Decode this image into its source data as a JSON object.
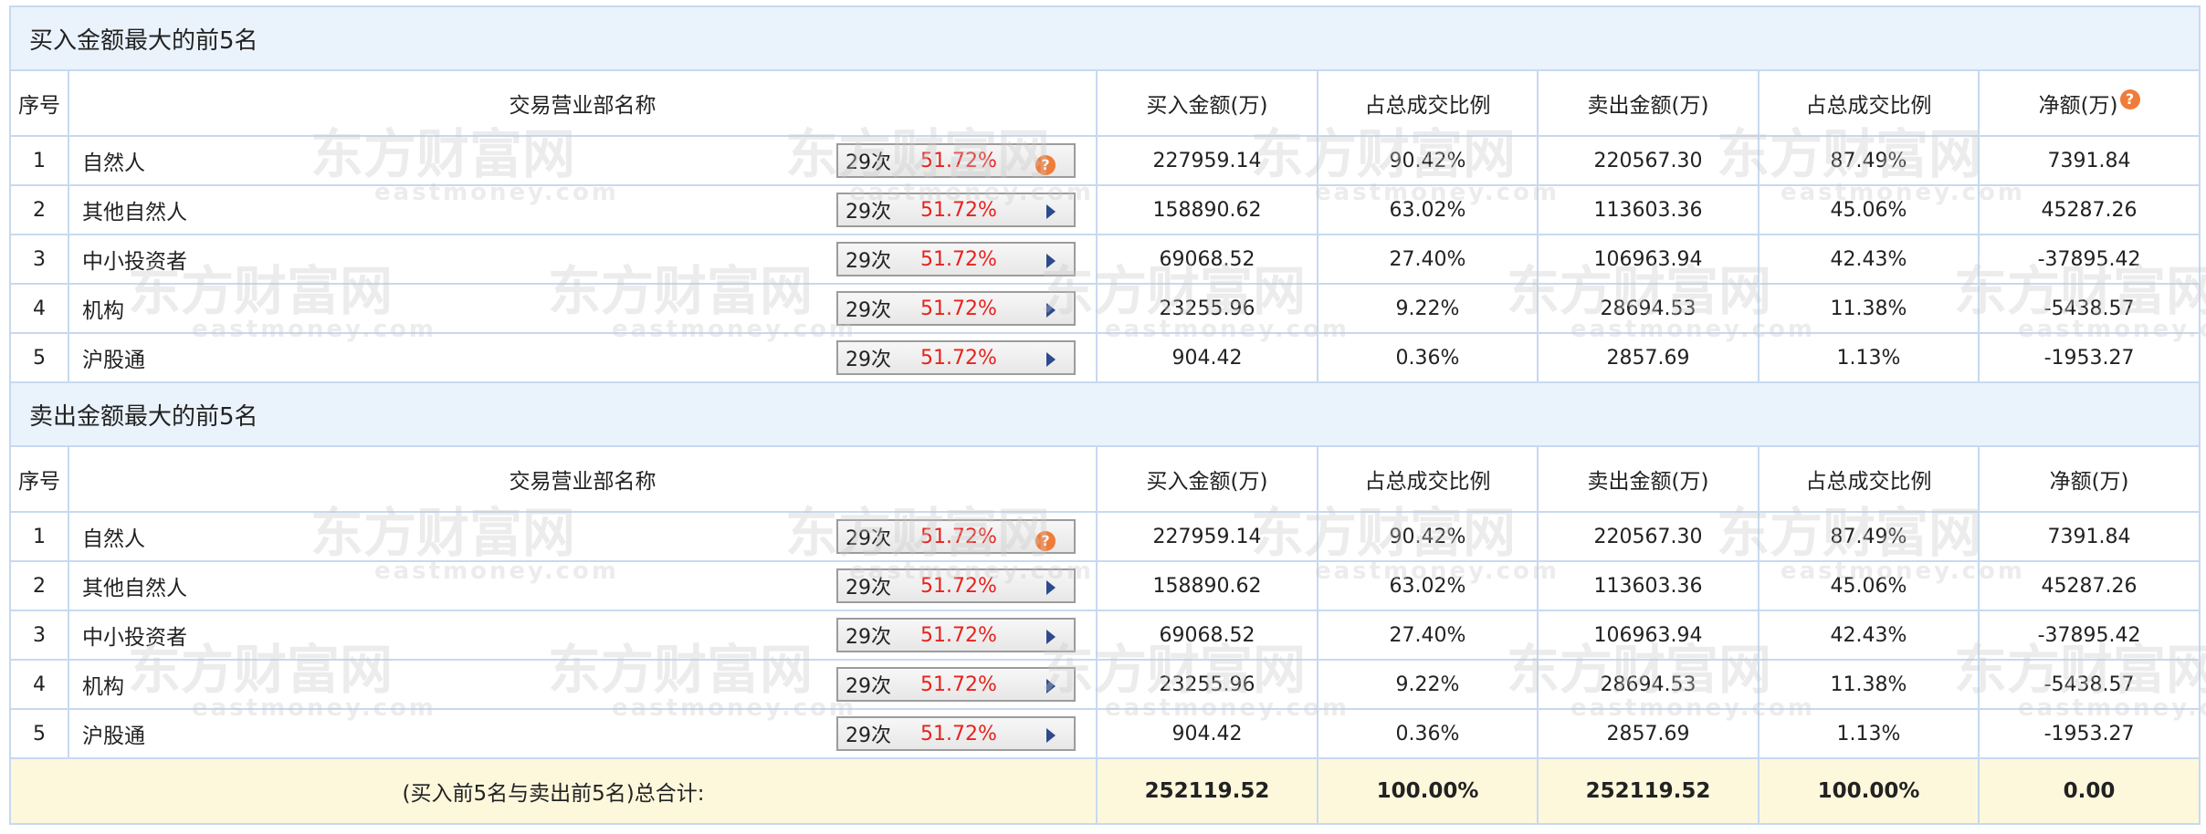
{
  "sections": [
    {
      "title": "买入金额最大的前5名",
      "headers": [
        "序号",
        "交易营业部名称",
        "买入金额(万)",
        "占总成交比例",
        "卖出金额(万)",
        "占总成交比例",
        "净额(万)"
      ],
      "header_help_icon": "?",
      "rows": [
        {
          "no": "1",
          "name": "自然人",
          "count": "29次",
          "pct": "51.72%",
          "icon": "help",
          "buy": "227959.14",
          "buy_ratio": "90.42%",
          "sell": "220567.30",
          "sell_ratio": "87.49%",
          "net": "7391.84",
          "net_sign": "pos"
        },
        {
          "no": "2",
          "name": "其他自然人",
          "count": "29次",
          "pct": "51.72%",
          "icon": "arrow",
          "buy": "158890.62",
          "buy_ratio": "63.02%",
          "sell": "113603.36",
          "sell_ratio": "45.06%",
          "net": "45287.26",
          "net_sign": "pos"
        },
        {
          "no": "3",
          "name": "中小投资者",
          "count": "29次",
          "pct": "51.72%",
          "icon": "arrow",
          "buy": "69068.52",
          "buy_ratio": "27.40%",
          "sell": "106963.94",
          "sell_ratio": "42.43%",
          "net": "-37895.42",
          "net_sign": "neg"
        },
        {
          "no": "4",
          "name": "机构",
          "count": "29次",
          "pct": "51.72%",
          "icon": "arrow",
          "buy": "23255.96",
          "buy_ratio": "9.22%",
          "sell": "28694.53",
          "sell_ratio": "11.38%",
          "net": "-5438.57",
          "net_sign": "neg"
        },
        {
          "no": "5",
          "name": "沪股通",
          "count": "29次",
          "pct": "51.72%",
          "icon": "arrow",
          "buy": "904.42",
          "buy_ratio": "0.36%",
          "sell": "2857.69",
          "sell_ratio": "1.13%",
          "net": "-1953.27",
          "net_sign": "neg"
        }
      ]
    },
    {
      "title": "卖出金额最大的前5名",
      "headers": [
        "序号",
        "交易营业部名称",
        "买入金额(万)",
        "占总成交比例",
        "卖出金额(万)",
        "占总成交比例",
        "净额(万)"
      ],
      "header_help_icon": "",
      "rows": [
        {
          "no": "1",
          "name": "自然人",
          "count": "29次",
          "pct": "51.72%",
          "icon": "help",
          "buy": "227959.14",
          "buy_ratio": "90.42%",
          "sell": "220567.30",
          "sell_ratio": "87.49%",
          "net": "7391.84",
          "net_sign": "pos"
        },
        {
          "no": "2",
          "name": "其他自然人",
          "count": "29次",
          "pct": "51.72%",
          "icon": "arrow",
          "buy": "158890.62",
          "buy_ratio": "63.02%",
          "sell": "113603.36",
          "sell_ratio": "45.06%",
          "net": "45287.26",
          "net_sign": "pos"
        },
        {
          "no": "3",
          "name": "中小投资者",
          "count": "29次",
          "pct": "51.72%",
          "icon": "arrow",
          "buy": "69068.52",
          "buy_ratio": "27.40%",
          "sell": "106963.94",
          "sell_ratio": "42.43%",
          "net": "-37895.42",
          "net_sign": "neg"
        },
        {
          "no": "4",
          "name": "机构",
          "count": "29次",
          "pct": "51.72%",
          "icon": "arrow",
          "buy": "23255.96",
          "buy_ratio": "9.22%",
          "sell": "28694.53",
          "sell_ratio": "11.38%",
          "net": "-5438.57",
          "net_sign": "neg"
        },
        {
          "no": "5",
          "name": "沪股通",
          "count": "29次",
          "pct": "51.72%",
          "icon": "arrow",
          "buy": "904.42",
          "buy_ratio": "0.36%",
          "sell": "2857.69",
          "sell_ratio": "1.13%",
          "net": "-1953.27",
          "net_sign": "neg"
        }
      ]
    }
  ],
  "total": {
    "label": "(买入前5名与卖出前5名)总合计:",
    "buy": "252119.52",
    "buy_ratio": "100.00%",
    "sell": "252119.52",
    "sell_ratio": "100.00%",
    "net": "0.00"
  },
  "watermark": {
    "cn": "东方财富网",
    "en": "eastmoney.com"
  },
  "colors": {
    "positive": "#e8221d",
    "negative": "#1e8e1e",
    "link": "#1f3e9a",
    "section_bg": "#eaf3fc",
    "total_bg": "#fdf8dc",
    "border": "#c7d9ef"
  },
  "icons": {
    "help": "help-circle-icon",
    "arrow": "triangle-right-icon"
  }
}
